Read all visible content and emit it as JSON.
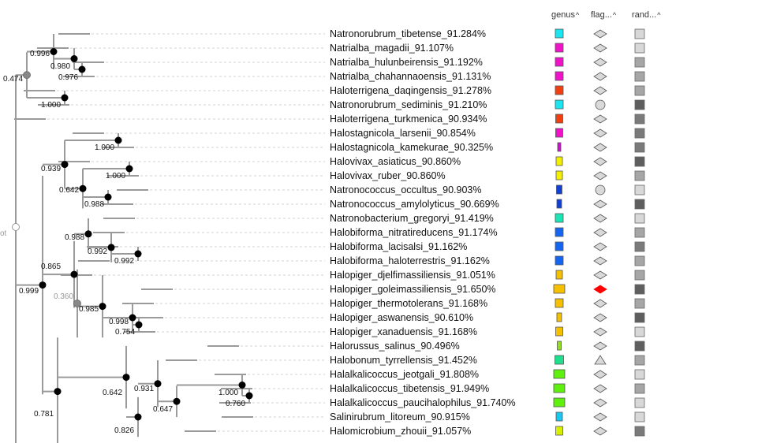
{
  "headers": [
    {
      "label": "genus",
      "arrow": "^"
    },
    {
      "label": "flag...",
      "arrow": "^"
    },
    {
      "label": "rand...",
      "arrow": "^"
    }
  ],
  "root_label": "ot",
  "colors": {
    "branch": "#9a9a9a",
    "dashed": "#d0d0d0",
    "node_black": "#000000",
    "node_gray": "#999999",
    "shape_gray": "#d9d9d9",
    "flag_red": "#ff0000"
  },
  "leaves": [
    {
      "name": "Natronorubrum_tibetense_91.284%",
      "genus_color": "#19e6f0",
      "flag": "diamond",
      "rand": "#d8d8d8"
    },
    {
      "name": "Natrialba_magadii_91.107%",
      "genus_color": "#f012c8",
      "flag": "diamond",
      "rand": "#d8d8d8"
    },
    {
      "name": "Natrialba_hulunbeirensis_91.192%",
      "genus_color": "#f012c8",
      "flag": "diamond",
      "rand": "#a6a6a6"
    },
    {
      "name": "Natrialba_chahannaoensis_91.131%",
      "genus_color": "#f012c8",
      "flag": "diamond",
      "rand": "#a6a6a6"
    },
    {
      "name": "Haloterrigena_daqingensis_91.278%",
      "genus_color": "#f04010",
      "flag": "diamond",
      "rand": "#a6a6a6"
    },
    {
      "name": "Natronorubrum_sediminis_91.210%",
      "genus_color": "#19e6f0",
      "flag": "circle",
      "rand": "#5e5e5e"
    },
    {
      "name": "Haloterrigena_turkmenica_90.934%",
      "genus_color": "#f04010",
      "flag": "diamond",
      "rand": "#7a7a7a"
    },
    {
      "name": "Halostagnicola_larsenii_90.854%",
      "genus_color": "#f012c8",
      "flag": "diamond",
      "rand": "#7a7a7a"
    },
    {
      "name": "Halostagnicola_kamekurae_90.325%",
      "genus_color": "#d010d0",
      "flag": "diamond",
      "rand": "#7a7a7a"
    },
    {
      "name": "Halovivax_asiaticus_90.860%",
      "genus_color": "#f5f000",
      "flag": "diamond",
      "rand": "#5e5e5e"
    },
    {
      "name": "Halovivax_ruber_90.860%",
      "genus_color": "#f5f000",
      "flag": "diamond",
      "rand": "#a6a6a6"
    },
    {
      "name": "Natronococcus_occultus_90.903%",
      "genus_color": "#1040d8",
      "flag": "circle",
      "rand": "#d8d8d8"
    },
    {
      "name": "Natronococcus_amylolyticus_90.669%",
      "genus_color": "#1040d8",
      "flag": "diamond",
      "rand": "#5e5e5e"
    },
    {
      "name": "Natronobacterium_gregoryi_91.419%",
      "genus_color": "#19e6b4",
      "flag": "diamond",
      "rand": "#d8d8d8"
    },
    {
      "name": "Halobiforma_nitratireducens_91.174%",
      "genus_color": "#1466f0",
      "flag": "diamond",
      "rand": "#a6a6a6"
    },
    {
      "name": "Halobiforma_lacisalsi_91.162%",
      "genus_color": "#1466f0",
      "flag": "diamond",
      "rand": "#7a7a7a"
    },
    {
      "name": "Halobiforma_haloterrestris_91.162%",
      "genus_color": "#1466f0",
      "flag": "diamond",
      "rand": "#a6a6a6"
    },
    {
      "name": "Halopiger_djelfimassiliensis_91.051%",
      "genus_color": "#f5c000",
      "flag": "diamond",
      "rand": "#a6a6a6"
    },
    {
      "name": "Halopiger_goleimassiliensis_91.650%",
      "genus_color": "#f5c000",
      "flag": "diamond-red",
      "rand": "#5e5e5e"
    },
    {
      "name": "Halopiger_thermotolerans_91.168%",
      "genus_color": "#f5c000",
      "flag": "diamond",
      "rand": "#a6a6a6"
    },
    {
      "name": "Halopiger_aswanensis_90.610%",
      "genus_color": "#f5c000",
      "flag": "diamond",
      "rand": "#5e5e5e"
    },
    {
      "name": "Halopiger_xanaduensis_91.168%",
      "genus_color": "#f5c000",
      "flag": "diamond",
      "rand": "#d8d8d8"
    },
    {
      "name": "Halorussus_salinus_90.496%",
      "genus_color": "#90e020",
      "flag": "diamond",
      "rand": "#5e5e5e"
    },
    {
      "name": "Halobonum_tyrrellensis_91.452%",
      "genus_color": "#20e090",
      "flag": "triangle",
      "rand": "#a6a6a6"
    },
    {
      "name": "Halalkalicoccus_jeotgali_91.808%",
      "genus_color": "#60f010",
      "flag": "diamond",
      "rand": "#d8d8d8"
    },
    {
      "name": "Halalkalicoccus_tibetensis_91.949%",
      "genus_color": "#60f010",
      "flag": "diamond",
      "rand": "#a6a6a6"
    },
    {
      "name": "Halalkalicoccus_paucihalophilus_91.740%",
      "genus_color": "#60f010",
      "flag": "diamond",
      "rand": "#d8d8d8"
    },
    {
      "name": "Salinirubrum_litoreum_90.915%",
      "genus_color": "#19c8f0",
      "flag": "diamond",
      "rand": "#d8d8d8"
    },
    {
      "name": "Halomicrobium_zhouii_91.057%",
      "genus_color": "#d8f000",
      "flag": "diamond",
      "rand": "#7a7a7a"
    }
  ],
  "support_values": [
    {
      "label": "0.996",
      "gray": false
    },
    {
      "label": "0.980",
      "gray": false
    },
    {
      "label": "0.976",
      "gray": false
    },
    {
      "label": "0.474",
      "gray": false
    },
    {
      "label": "1.000",
      "gray": false
    },
    {
      "label": "1.000",
      "gray": false
    },
    {
      "label": "0.939",
      "gray": false
    },
    {
      "label": "1.000",
      "gray": false
    },
    {
      "label": "0.642",
      "gray": false
    },
    {
      "label": "0.988",
      "gray": false
    },
    {
      "label": "0.988",
      "gray": false
    },
    {
      "label": "0.992",
      "gray": false
    },
    {
      "label": "0.992",
      "gray": false
    },
    {
      "label": "0.865",
      "gray": false
    },
    {
      "label": "0.999",
      "gray": false
    },
    {
      "label": "0.360",
      "gray": true
    },
    {
      "label": "0.985",
      "gray": false
    },
    {
      "label": "0.998",
      "gray": false
    },
    {
      "label": "0.754",
      "gray": false
    },
    {
      "label": "0.642",
      "gray": false
    },
    {
      "label": "0.931",
      "gray": false
    },
    {
      "label": "1.000",
      "gray": false
    },
    {
      "label": "0.760",
      "gray": false
    },
    {
      "label": "0.647",
      "gray": false
    },
    {
      "label": "0.826",
      "gray": false
    },
    {
      "label": "0.781",
      "gray": false
    }
  ]
}
